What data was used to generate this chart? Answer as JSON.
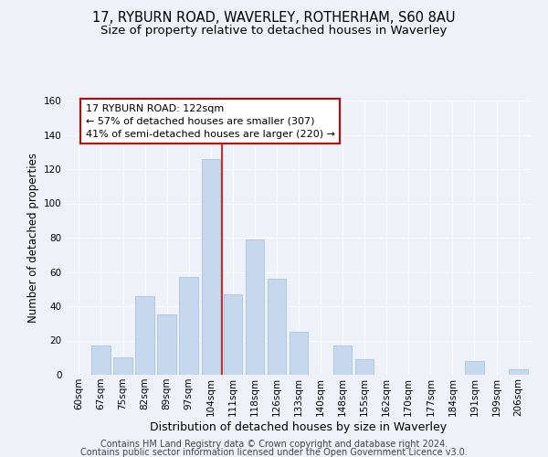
{
  "title": "17, RYBURN ROAD, WAVERLEY, ROTHERHAM, S60 8AU",
  "subtitle": "Size of property relative to detached houses in Waverley",
  "xlabel": "Distribution of detached houses by size in Waverley",
  "ylabel": "Number of detached properties",
  "categories": [
    "60sqm",
    "67sqm",
    "75sqm",
    "82sqm",
    "89sqm",
    "97sqm",
    "104sqm",
    "111sqm",
    "118sqm",
    "126sqm",
    "133sqm",
    "140sqm",
    "148sqm",
    "155sqm",
    "162sqm",
    "170sqm",
    "177sqm",
    "184sqm",
    "191sqm",
    "199sqm",
    "206sqm"
  ],
  "values": [
    0,
    17,
    10,
    46,
    35,
    57,
    126,
    47,
    79,
    56,
    25,
    0,
    17,
    9,
    0,
    0,
    0,
    0,
    8,
    0,
    3
  ],
  "bar_color": "#c5d8ed",
  "bar_edge_color": "#a8c4dc",
  "ref_line_xindex": 6.5,
  "reference_line_color": "#cc0000",
  "annotation_text": "17 RYBURN ROAD: 122sqm\n← 57% of detached houses are smaller (307)\n41% of semi-detached houses are larger (220) →",
  "annotation_box_color": "#cc0000",
  "ylim": [
    0,
    160
  ],
  "yticks": [
    0,
    20,
    40,
    60,
    80,
    100,
    120,
    140,
    160
  ],
  "footer1": "Contains HM Land Registry data © Crown copyright and database right 2024.",
  "footer2": "Contains public sector information licensed under the Open Government Licence v3.0.",
  "bg_color": "#eef2f8",
  "grid_color": "#ffffff",
  "title_fontsize": 10.5,
  "subtitle_fontsize": 9.5,
  "xlabel_fontsize": 9,
  "ylabel_fontsize": 8.5,
  "tick_fontsize": 7.5,
  "footer_fontsize": 7,
  "ann_fontsize": 8
}
